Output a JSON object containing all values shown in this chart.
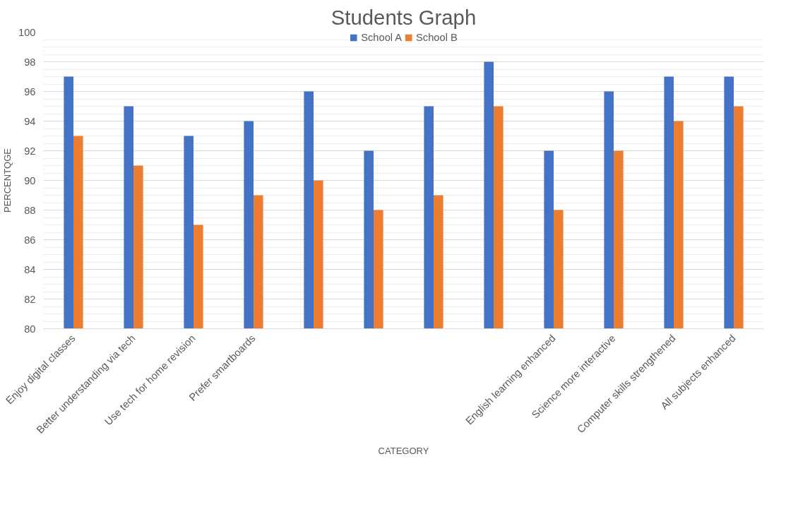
{
  "chart_data": {
    "type": "bar",
    "title": "Students Graph",
    "xlabel": "CATEGORY",
    "ylabel": "PERCENTQGE",
    "categories": [
      "Enjoy digital classes",
      "Better understanding via tech",
      "Use tech for home revision",
      "Prefer smartboards",
      null,
      null,
      null,
      null,
      "English learning enhanced",
      "Science more interactive",
      "Computer skills strengthened",
      "All subjects enhanced"
    ],
    "series": [
      {
        "name": "School A",
        "color": "#4472c4",
        "values": [
          97,
          95,
          93,
          94,
          96,
          92,
          95,
          98,
          92,
          96,
          97,
          97
        ]
      },
      {
        "name": "School B",
        "color": "#ed7d31",
        "values": [
          93,
          91,
          87,
          89,
          90,
          88,
          89,
          95,
          88,
          92,
          94,
          95
        ]
      }
    ],
    "ylim": [
      80,
      100
    ],
    "yticks": [
      80,
      82,
      84,
      86,
      88,
      90,
      92,
      94,
      96,
      98,
      100
    ],
    "grid": "y",
    "legend": "top"
  }
}
